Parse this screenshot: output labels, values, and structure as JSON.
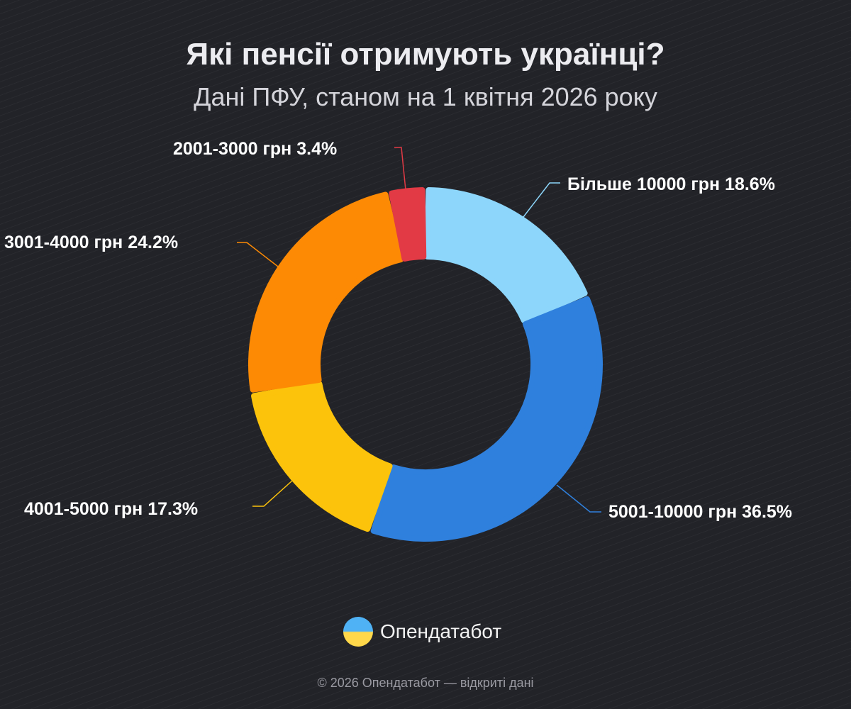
{
  "title": "Які пенсії отримують українці?",
  "subtitle": "Дані ПФУ, станом на 1 квітня 2026 року",
  "chart_data": {
    "type": "pie",
    "donut": true,
    "start": "top, clockwise",
    "categories": [
      "Більше 10000 грн",
      "5001-10000 грн",
      "4001-5000 грн",
      "3001-4000 грн",
      "2001-3000 грн"
    ],
    "values": [
      18.6,
      36.5,
      17.3,
      24.2,
      3.4
    ],
    "labels": [
      "Більше 10000 грн 18.6%",
      "5001-10000 грн 36.5%",
      "4001-5000 грн 17.3%",
      "3001-4000 грн 24.2%",
      "2001-3000 грн 3.4%"
    ],
    "colors": [
      "#8dd6fb",
      "#2f80dd",
      "#fcc30b",
      "#fd8a04",
      "#e23a45"
    ],
    "unit": "%"
  },
  "logo": {
    "text": "Опендатабот"
  },
  "footer": "© 2026 Опендатабот — відкриті дані"
}
